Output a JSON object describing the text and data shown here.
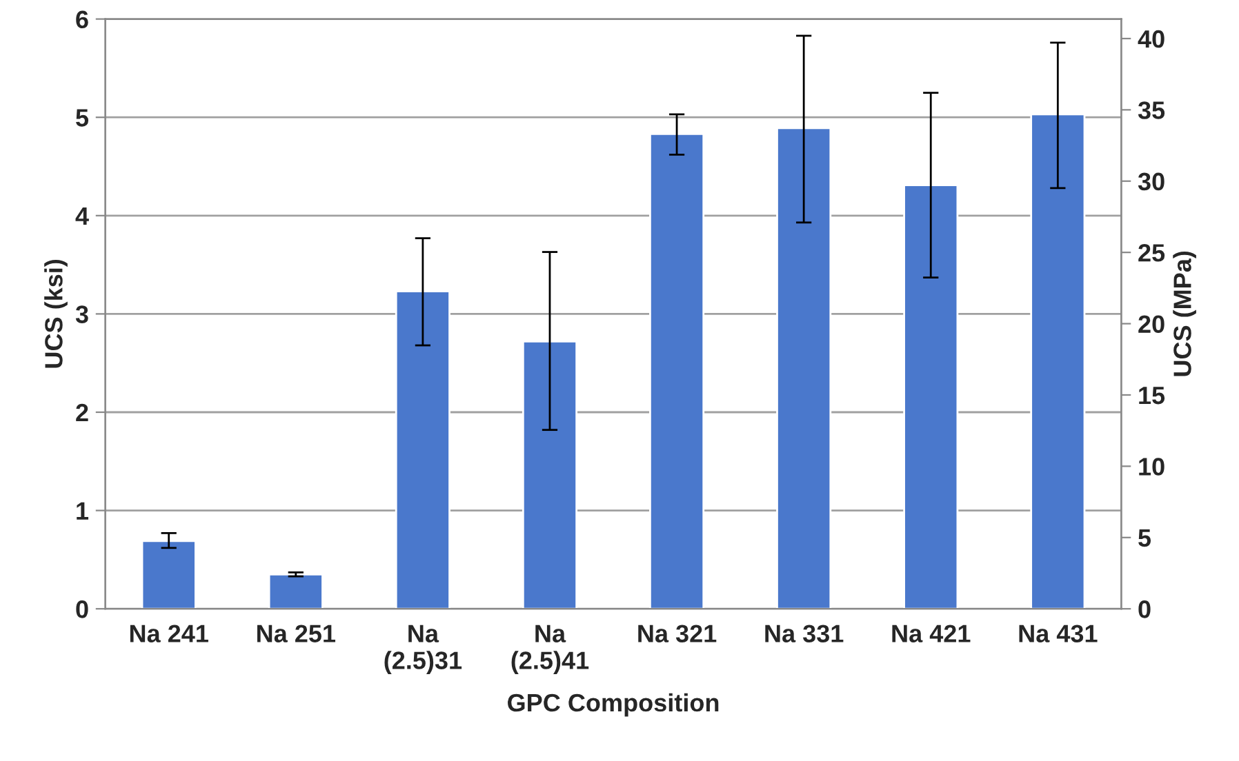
{
  "chart_data": {
    "type": "bar",
    "xlabel": "GPC Composition",
    "ylabel": "UCS (ksi)",
    "y2label": "UCS (MPa)",
    "categories": [
      "Na 241",
      "Na 251",
      "Na\n(2.5)31",
      "Na\n(2.5)41",
      "Na 321",
      "Na 331",
      "Na 421",
      "Na 431"
    ],
    "values": [
      0.69,
      0.35,
      3.23,
      2.72,
      4.83,
      4.89,
      4.31,
      5.03
    ],
    "errors": [
      [
        0.62,
        0.77
      ],
      [
        0.33,
        0.37
      ],
      [
        2.68,
        3.77
      ],
      [
        1.82,
        3.63
      ],
      [
        4.62,
        5.03
      ],
      [
        3.93,
        5.83
      ],
      [
        3.37,
        5.25
      ],
      [
        4.28,
        5.76
      ]
    ],
    "color": "#4a78cc",
    "ylim": [
      0,
      6
    ],
    "yticks": [
      0,
      1,
      2,
      3,
      4,
      5,
      6
    ],
    "y2lim": [
      0,
      41.37
    ],
    "y2ticks": [
      0,
      5,
      10,
      15,
      20,
      25,
      30,
      35,
      40
    ],
    "grid": "y",
    "legend": false
  }
}
